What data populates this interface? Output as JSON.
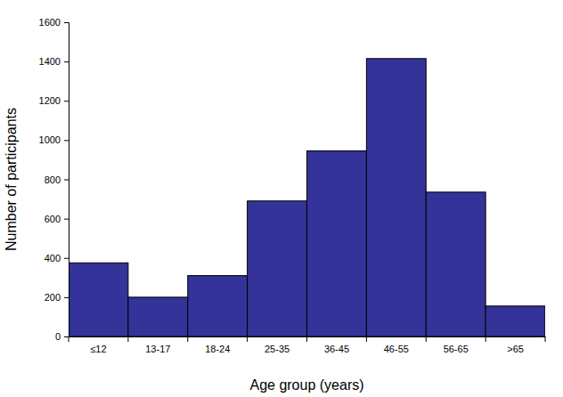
{
  "chart_data": {
    "type": "bar",
    "x_label": "Age group (years)",
    "y_label": "Number of participants",
    "categories": [
      "≤12",
      "13-17",
      "18-24",
      "25-35",
      "36-45",
      "46-55",
      "56-65",
      ">65"
    ],
    "values": [
      375,
      200,
      310,
      690,
      945,
      1415,
      735,
      155
    ],
    "color": "#333399",
    "ylim": [
      0,
      1600
    ],
    "yticks": [
      0,
      200,
      400,
      600,
      800,
      1000,
      1200,
      1400,
      1600
    ],
    "grid": false
  }
}
